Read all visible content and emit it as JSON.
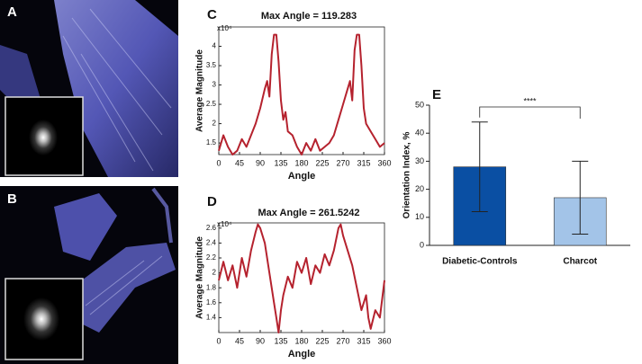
{
  "panels": {
    "a": "A",
    "b": "B"
  },
  "chart_data": [
    {
      "type": "line",
      "panel": "C",
      "title": "Max Angle = 119.283",
      "x_label": "Angle",
      "y_label": "Average Magnitude",
      "y_multiplier": "x10⁴",
      "x": [
        0,
        10,
        20,
        30,
        40,
        50,
        60,
        70,
        80,
        90,
        100,
        105,
        110,
        115,
        120,
        125,
        130,
        135,
        140,
        145,
        150,
        160,
        170,
        180,
        190,
        200,
        210,
        220,
        230,
        240,
        250,
        260,
        270,
        280,
        285,
        290,
        295,
        300,
        305,
        310,
        315,
        320,
        330,
        340,
        350,
        360
      ],
      "values": [
        1.3,
        1.7,
        1.4,
        1.2,
        1.3,
        1.6,
        1.4,
        1.7,
        2.0,
        2.4,
        2.9,
        3.1,
        2.7,
        3.8,
        4.3,
        4.3,
        3.6,
        2.6,
        2.1,
        2.3,
        1.8,
        1.7,
        1.4,
        1.2,
        1.5,
        1.3,
        1.6,
        1.3,
        1.4,
        1.5,
        1.7,
        2.1,
        2.5,
        2.9,
        3.1,
        2.6,
        3.9,
        4.3,
        4.3,
        3.5,
        2.4,
        2.0,
        1.8,
        1.6,
        1.4,
        1.5
      ],
      "color": "#b5222e",
      "xlim": [
        0,
        360
      ],
      "xticks": [
        0,
        45,
        90,
        135,
        180,
        225,
        270,
        315,
        360
      ],
      "ylim": [
        1.2,
        4.5
      ],
      "yticks": [
        1.5,
        2,
        2.5,
        3,
        3.5,
        4
      ]
    },
    {
      "type": "line",
      "panel": "D",
      "title": "Max Angle = 261.5242",
      "x_label": "Angle",
      "y_label": "Average Magnitude",
      "y_multiplier": "x10⁴",
      "x": [
        0,
        10,
        20,
        30,
        40,
        50,
        60,
        70,
        80,
        85,
        90,
        100,
        110,
        120,
        125,
        130,
        135,
        140,
        150,
        160,
        170,
        180,
        190,
        200,
        210,
        220,
        230,
        240,
        250,
        260,
        265,
        270,
        280,
        290,
        300,
        310,
        320,
        325,
        330,
        340,
        350,
        360
      ],
      "values": [
        1.9,
        2.15,
        1.9,
        2.1,
        1.8,
        2.2,
        1.95,
        2.3,
        2.55,
        2.65,
        2.6,
        2.4,
        2.0,
        1.6,
        1.4,
        1.2,
        1.5,
        1.7,
        1.95,
        1.8,
        2.15,
        2.0,
        2.2,
        1.85,
        2.1,
        2.0,
        2.25,
        2.1,
        2.3,
        2.6,
        2.65,
        2.5,
        2.3,
        2.1,
        1.8,
        1.5,
        1.7,
        1.4,
        1.25,
        1.5,
        1.4,
        1.9
      ],
      "color": "#b5222e",
      "xlim": [
        0,
        360
      ],
      "xticks": [
        0,
        45,
        90,
        135,
        180,
        225,
        270,
        315,
        360
      ],
      "ylim": [
        1.2,
        2.67
      ],
      "yticks": [
        1.4,
        1.6,
        1.8,
        2,
        2.2,
        2.4,
        2.6
      ]
    },
    {
      "type": "bar",
      "panel": "E",
      "y_label": "Orientation Index, %",
      "categories": [
        "Diabetic-Controls",
        "Charcot"
      ],
      "values": [
        28,
        17
      ],
      "errors": [
        16,
        13
      ],
      "colors": [
        "#0a4fa3",
        "#a3c4e8"
      ],
      "ylim": [
        0,
        50
      ],
      "yticks": [
        0,
        10,
        20,
        30,
        40,
        50
      ],
      "significance": "****"
    }
  ]
}
